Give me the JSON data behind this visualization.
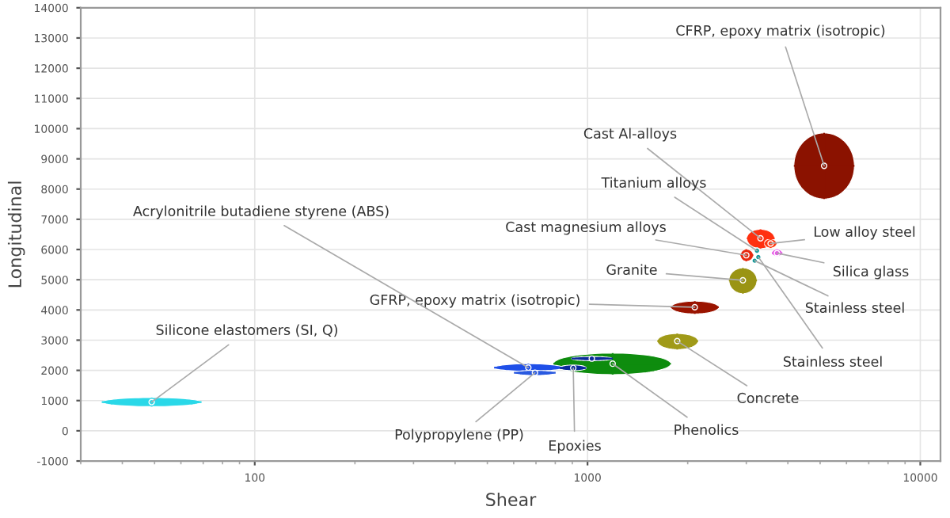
{
  "chart_data": {
    "type": "scatter",
    "xlabel": "Shear",
    "ylabel": "Longitudinal",
    "log": "x",
    "xlim": [
      30,
      11500
    ],
    "xticks": [
      100,
      1000,
      10000
    ],
    "ylim": [
      -1000,
      14000
    ],
    "yticks": [
      -1000,
      0,
      1000,
      2000,
      3000,
      4000,
      5000,
      6000,
      7000,
      8000,
      9000,
      10000,
      11000,
      12000,
      13000,
      14000
    ],
    "grid": true,
    "legend": false,
    "series": [
      {
        "name": "CFRP, epoxy matrix (isotropic)",
        "color": "#8b1200",
        "x": [
          5140
        ],
        "values": [
          8770
        ],
        "xerrors": [
          [
            4170,
            6340
          ]
        ],
        "errors": [
          [
            7670,
            9860
          ]
        ]
      },
      {
        "name": "Cast Al-alloys",
        "color": "#ff3010",
        "x": [
          3310
        ],
        "values": [
          6370
        ],
        "xerrors": [
          [
            3010,
            3650
          ]
        ],
        "errors": [
          [
            6030,
            6670
          ]
        ]
      },
      {
        "name": "Low alloy steel",
        "color": "#ff3a14",
        "x": [
          3550
        ],
        "values": [
          6200
        ],
        "xerrors": [
          [
            3400,
            3700
          ]
        ],
        "errors": [
          [
            6050,
            6350
          ]
        ]
      },
      {
        "name": "Titanium alloys",
        "color": "#0e9a9a",
        "x": [
          3230
        ],
        "values": [
          5960
        ],
        "xerrors": [
          [
            3180,
            3280
          ]
        ],
        "errors": [
          [
            5860,
            6060
          ]
        ]
      },
      {
        "name": "Cast magnesium alloys",
        "color": "#e82a10",
        "x": [
          3000
        ],
        "values": [
          5810
        ],
        "xerrors": [
          [
            2880,
            3150
          ]
        ],
        "errors": [
          [
            5610,
            6010
          ]
        ]
      },
      {
        "name": "Silica glass",
        "color": "#e855e8",
        "x": [
          3710
        ],
        "values": [
          5880
        ],
        "xerrors": [
          [
            3580,
            3850
          ]
        ],
        "errors": [
          [
            5780,
            6010
          ]
        ]
      },
      {
        "name": "Stainless steel",
        "color": "#0e9a9a",
        "x": [
          3180
        ],
        "values": [
          5630
        ],
        "xerrors": [
          [
            3130,
            3230
          ]
        ],
        "errors": [
          [
            5530,
            5730
          ]
        ]
      },
      {
        "name": "Granite",
        "color": "#9a9414",
        "x": [
          2930
        ],
        "values": [
          4980
        ],
        "xerrors": [
          [
            2660,
            3230
          ]
        ],
        "errors": [
          [
            4540,
            5390
          ]
        ]
      },
      {
        "name": "GFRP, epoxy matrix (isotropic)",
        "color": "#9a1400",
        "x": [
          2100
        ],
        "values": [
          4090
        ],
        "xerrors": [
          [
            1780,
            2480
          ]
        ],
        "errors": [
          [
            3870,
            4290
          ]
        ]
      },
      {
        "name": "Stainless steel",
        "color": "#0e9a9a",
        "x": [
          3260
        ],
        "values": [
          5750
        ],
        "xerrors": [
          [
            3220,
            3300
          ]
        ],
        "errors": [
          [
            5680,
            5820
          ]
        ]
      },
      {
        "name": "Concrete",
        "color": "#a09a18",
        "x": [
          1860
        ],
        "values": [
          2970
        ],
        "xerrors": [
          [
            1620,
            2150
          ]
        ],
        "errors": [
          [
            2690,
            3220
          ]
        ]
      },
      {
        "name": "Phenolics",
        "color": "#0e8c0e",
        "x": [
          1190
        ],
        "values": [
          2220
        ],
        "xerrors": [
          [
            790,
            1780
          ]
        ],
        "errors": [
          [
            1860,
            2570
          ]
        ]
      },
      {
        "color": "#0a2a9a",
        "x": [
          1030
        ],
        "values": [
          2390
        ],
        "xerrors": [
          [
            895,
            1190
          ]
        ],
        "errors": [
          [
            2320,
            2460
          ]
        ]
      },
      {
        "name": "Acrylonitrile butadiene styrene (ABS)",
        "color": "#1f4fe8",
        "x": [
          664
        ],
        "values": [
          2090
        ],
        "xerrors": [
          [
            524,
            843
          ]
        ],
        "errors": [
          [
            1970,
            2220
          ]
        ]
      },
      {
        "name": "Polypropylene (PP)",
        "color": "#2a5ae0",
        "x": [
          695
        ],
        "values": [
          1920
        ],
        "xerrors": [
          [
            601,
            802
          ]
        ],
        "errors": [
          [
            1830,
            2000
          ]
        ]
      },
      {
        "name": "Epoxies",
        "color": "#0a2a9a",
        "x": [
          906
        ],
        "values": [
          2080
        ],
        "xerrors": [
          [
            824,
            991
          ]
        ],
        "errors": [
          [
            1990,
            2180
          ]
        ]
      },
      {
        "name": "Silicone elastomers (SI, Q)",
        "color": "#2ad8e8",
        "x": [
          49
        ],
        "values": [
          950
        ],
        "xerrors": [
          [
            34.7,
            69.2
          ]
        ],
        "errors": [
          [
            800,
            1100
          ]
        ]
      }
    ]
  }
}
